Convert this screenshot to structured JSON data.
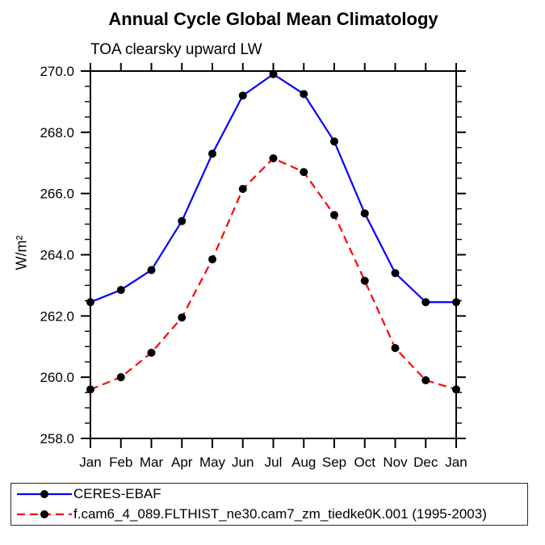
{
  "chart_data": {
    "type": "line",
    "title": "Annual Cycle Global Mean Climatology",
    "subtitle": "TOA clearsky upward LW",
    "ylabel": "W/m²",
    "categories": [
      "Jan",
      "Feb",
      "Mar",
      "Apr",
      "May",
      "Jun",
      "Jul",
      "Aug",
      "Sep",
      "Oct",
      "Nov",
      "Dec",
      "Jan"
    ],
    "ylim": [
      258.0,
      270.0
    ],
    "ytick_major_interval": 2.0,
    "ytick_minor_interval": 0.5,
    "ytick_labels": [
      "258.0",
      "260.0",
      "262.0",
      "264.0",
      "266.0",
      "268.0",
      "270.0"
    ],
    "grid": false,
    "legend_position": "bottom-left",
    "axis_color": "#000000",
    "marker_color": "#000000",
    "series": [
      {
        "name": "CERES-EBAF",
        "color": "#0000ff",
        "line_style": "solid",
        "marker": "circle",
        "values": [
          262.45,
          262.85,
          263.5,
          265.1,
          267.3,
          269.2,
          269.9,
          269.25,
          267.7,
          265.35,
          263.4,
          262.45,
          262.45
        ]
      },
      {
        "name": "f.cam6_4_089.FLTHIST_ne30.cam7_zm_tiedke0K.001 (1995-2003)",
        "color": "#ff0000",
        "line_style": "dashed",
        "marker": "circle",
        "values": [
          259.6,
          260.0,
          260.8,
          261.95,
          263.85,
          266.15,
          267.15,
          266.7,
          265.3,
          263.15,
          260.95,
          259.9,
          259.6
        ]
      }
    ]
  }
}
